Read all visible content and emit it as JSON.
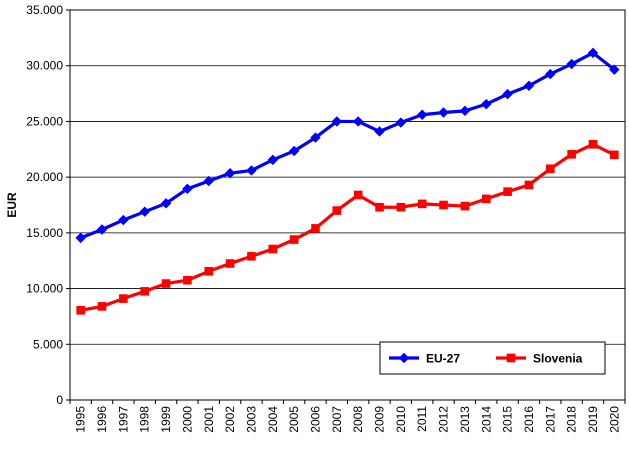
{
  "chart_data": {
    "type": "line",
    "xlabel": "",
    "ylabel": "EUR",
    "ylim": [
      0,
      35000
    ],
    "y_ticks": [
      0,
      5000,
      10000,
      15000,
      20000,
      25000,
      30000,
      35000
    ],
    "y_tick_labels": [
      "0",
      "5.000",
      "10.000",
      "15.000",
      "20.000",
      "25.000",
      "30.000",
      "35.000"
    ],
    "grid": "horizontal",
    "legend_position": "bottom-right",
    "categories": [
      "1995",
      "1996",
      "1997",
      "1998",
      "1999",
      "2000",
      "2001",
      "2002",
      "2003",
      "2004",
      "2005",
      "2006",
      "2007",
      "2008",
      "2009",
      "2010",
      "2011",
      "2012",
      "2013",
      "2014",
      "2015",
      "2016",
      "2017",
      "2018",
      "2019",
      "2020"
    ],
    "series": [
      {
        "name": "EU-27",
        "color": "#0000ff",
        "marker": "diamond",
        "values": [
          14550,
          15300,
          16150,
          16900,
          17650,
          18950,
          19650,
          20350,
          20600,
          21550,
          22350,
          23550,
          25000,
          25000,
          24100,
          24900,
          25600,
          25800,
          25950,
          26550,
          27450,
          28200,
          29250,
          30150,
          31150,
          29650
        ]
      },
      {
        "name": "Slovenia",
        "color": "#ff0000",
        "marker": "square",
        "values": [
          8050,
          8400,
          9100,
          9750,
          10450,
          10750,
          11550,
          12250,
          12900,
          13550,
          14400,
          15400,
          17000,
          18400,
          17300,
          17300,
          17600,
          17500,
          17400,
          18050,
          18700,
          19300,
          20750,
          22050,
          22950,
          22000
        ]
      }
    ]
  }
}
